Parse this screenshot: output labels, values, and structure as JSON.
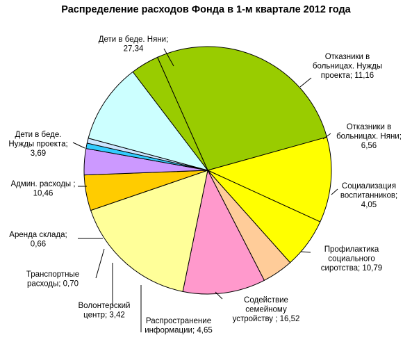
{
  "chart_data": {
    "type": "pie",
    "title": "Распределение расходов Фонда в 1-м квартале 2012 года",
    "slices": [
      {
        "label": [
          "Дети  в беде.  Няни;",
          "27,34"
        ],
        "value": 27.34,
        "color": "#99CC00"
      },
      {
        "label": [
          "Отказники  в",
          "больницах.  Нужды",
          "проекта;  11,16"
        ],
        "value": 11.16,
        "color": "#FFFF00"
      },
      {
        "label": [
          "Отказники  в",
          "больницах.  Няни;",
          "6,56"
        ],
        "value": 6.56,
        "color": "#FFFF00"
      },
      {
        "label": [
          "Социализация",
          "воспитанников;",
          "4,05"
        ],
        "value": 4.05,
        "color": "#FFCC99"
      },
      {
        "label": [
          "Профилактика",
          "социального",
          "сиротства;  10,79"
        ],
        "value": 10.79,
        "color": "#FF99CC"
      },
      {
        "label": [
          "Содействие",
          "семейному",
          "устройству  ; 16,52"
        ],
        "value": 16.52,
        "color": "#FFFF99"
      },
      {
        "label": [
          "Распространение",
          "информации;  4,65"
        ],
        "value": 4.65,
        "color": "#FFCC00"
      },
      {
        "label": [
          "Волонтерский",
          "центр;  3,42"
        ],
        "value": 3.42,
        "color": "#CC99FF"
      },
      {
        "label": [
          "Транспортные",
          "расходы;  0,70"
        ],
        "value": 0.7,
        "color": "#33CCFF"
      },
      {
        "label": [
          "Аренда склада;",
          "0,66"
        ],
        "value": 0.66,
        "color": "#CCE5FF"
      },
      {
        "label": [
          "Админ.  расходы  ;",
          "10,46"
        ],
        "value": 10.46,
        "color": "#CCFFFF"
      },
      {
        "label": [
          "Дети  в беде.",
          "Нужды проекта;",
          "3,69"
        ],
        "value": 3.69,
        "color": "#99CC00"
      }
    ]
  }
}
